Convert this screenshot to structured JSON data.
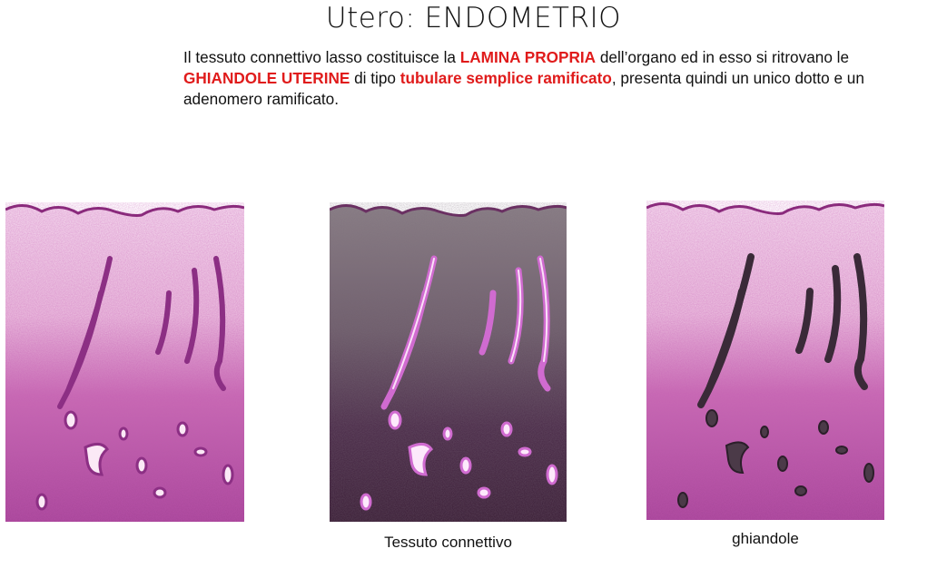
{
  "slide": {
    "title": "Utero: ENDOMETRIO",
    "paragraph": {
      "p1": "Il tessuto connettivo lasso costituisce la ",
      "h1": "LAMINA PROPRIA",
      "p2": " dell’organo ed in esso si ritrovano le ",
      "h2": "GHIANDOLE UTERINE",
      "p3": " di tipo ",
      "h3": "tubulare semplice ramificato",
      "p4": ", presenta quindi un unico dotto e un adenomero ramificato."
    },
    "highlight_color": "#e01b1b"
  },
  "panels": [
    {
      "caption": "",
      "variant": "original"
    },
    {
      "caption": "Tessuto connettivo",
      "variant": "connective-highlighted"
    },
    {
      "caption": "ghiandole",
      "variant": "glands-highlighted"
    }
  ]
}
